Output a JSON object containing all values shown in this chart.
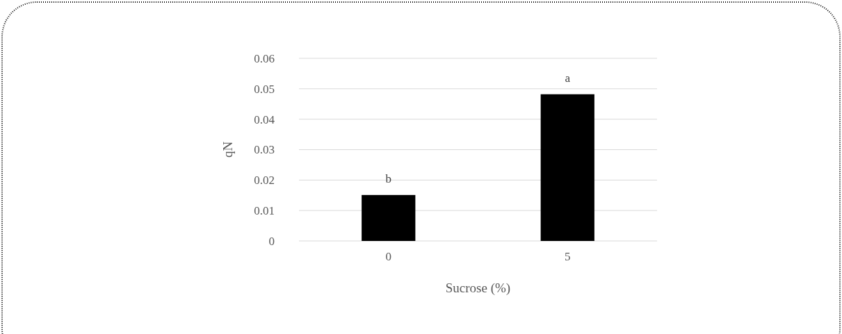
{
  "chart_data": {
    "type": "bar",
    "xlabel": "Sucrose (%)",
    "ylabel": "qN",
    "categories": [
      "0",
      "5"
    ],
    "values": [
      0.0151,
      0.0482
    ],
    "color": "#000000",
    "ylim": [
      0,
      0.06
    ],
    "yticks": [
      0,
      0.01,
      0.02,
      0.03,
      0.04,
      0.05,
      0.06
    ],
    "grid": "y",
    "annotations": [
      {
        "text": "b",
        "x": "0",
        "y": 0.0151
      },
      {
        "text": "a",
        "x": "5",
        "y": 0.0482
      }
    ]
  }
}
